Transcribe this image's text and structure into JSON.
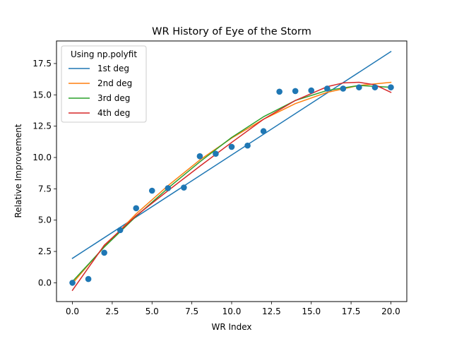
{
  "chart_data": {
    "type": "scatter",
    "title": "WR History of Eye of the Storm",
    "xlabel": "WR Index",
    "ylabel": "Relative Improvement",
    "xlim": [
      -1,
      21
    ],
    "ylim": [
      -1.5,
      19.3
    ],
    "xticks": [
      0.0,
      2.5,
      5.0,
      7.5,
      10.0,
      12.5,
      15.0,
      17.5,
      20.0
    ],
    "xtick_labels": [
      "0.0",
      "2.5",
      "5.0",
      "7.5",
      "10.0",
      "12.5",
      "15.0",
      "17.5",
      "20.0"
    ],
    "yticks": [
      0.0,
      2.5,
      5.0,
      7.5,
      10.0,
      12.5,
      15.0,
      17.5
    ],
    "ytick_labels": [
      "0.0",
      "2.5",
      "5.0",
      "7.5",
      "10.0",
      "12.5",
      "15.0",
      "17.5"
    ],
    "grid": false,
    "legend": {
      "title": "Using np.polyfit",
      "placement": "top-left"
    },
    "scatter": {
      "color": "#1f77b4",
      "x": [
        0,
        1,
        2,
        3,
        4,
        5,
        6,
        7,
        8,
        9,
        10,
        11,
        12,
        13,
        14,
        15,
        16,
        17,
        18,
        19,
        20
      ],
      "y": [
        0.0,
        0.3,
        2.4,
        4.2,
        5.95,
        7.35,
        7.55,
        7.6,
        10.1,
        10.3,
        10.85,
        10.95,
        12.1,
        15.25,
        15.3,
        15.35,
        15.5,
        15.5,
        15.6,
        15.6,
        15.6
      ]
    },
    "series": [
      {
        "name": "1st deg",
        "color": "#1f77b4",
        "x": [
          0,
          20
        ],
        "y": [
          1.95,
          18.45
        ]
      },
      {
        "name": "2nd deg",
        "color": "#ff7f0e",
        "x": [
          0,
          2,
          4,
          6,
          8,
          10,
          12,
          14,
          16,
          18,
          20
        ],
        "y": [
          -0.05,
          2.9,
          5.5,
          7.75,
          9.8,
          11.55,
          13.05,
          14.3,
          15.2,
          15.75,
          16.0
        ]
      },
      {
        "name": "3rd deg",
        "color": "#2ca02c",
        "x": [
          0,
          2,
          4,
          6,
          8,
          10,
          12,
          14,
          16,
          18,
          20
        ],
        "y": [
          0.1,
          2.85,
          5.3,
          7.55,
          9.65,
          11.6,
          13.25,
          14.55,
          15.35,
          15.75,
          15.6
        ]
      },
      {
        "name": "4th deg",
        "color": "#d62728",
        "x": [
          0,
          2,
          4,
          6,
          8,
          10,
          12,
          14,
          16,
          17,
          18,
          19,
          20
        ],
        "y": [
          -0.6,
          3.0,
          5.35,
          7.35,
          9.3,
          11.2,
          13.05,
          14.55,
          15.65,
          15.95,
          16.0,
          15.8,
          15.2
        ]
      }
    ]
  }
}
